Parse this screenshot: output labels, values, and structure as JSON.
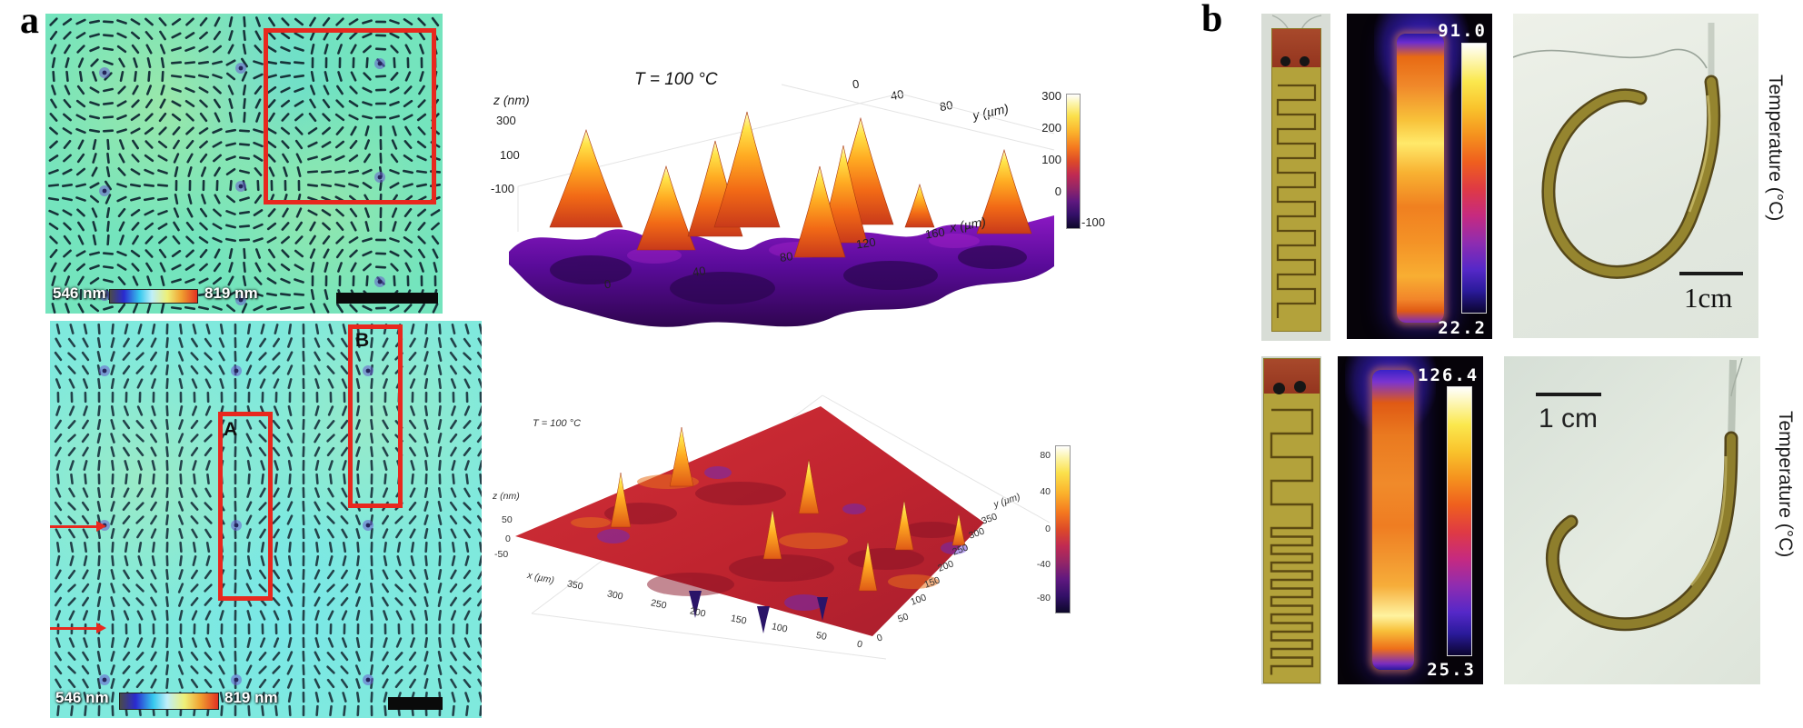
{
  "labels": {
    "panel_a": "a",
    "panel_b": "b"
  },
  "panel_a": {
    "top_micrograph": {
      "colorbar_min": "546 nm",
      "colorbar_max": "819 nm"
    },
    "bottom_micrograph": {
      "colorbar_min": "546 nm",
      "colorbar_max": "819 nm",
      "region_a": "A",
      "region_b": "B"
    },
    "top_surface": {
      "title": "T = 100 °C",
      "zlabel": "z (nm)",
      "xlabel": "x (µm)",
      "ylabel": "y (µm)",
      "z_ticks": [
        "300",
        "100",
        "-100"
      ],
      "x_ticks": [
        "0",
        "40",
        "80",
        "120",
        "160"
      ],
      "y_ticks": [
        "0",
        "40",
        "80"
      ],
      "cbar_ticks": [
        "300",
        "200",
        "100",
        "0",
        "-100"
      ]
    },
    "bottom_surface": {
      "title": "T = 100 °C",
      "zlabel": "z (nm)",
      "xlabel": "x (µm)",
      "ylabel": "y (µm)",
      "z_ticks": [
        "50",
        "0",
        "-50"
      ],
      "x_ticks": [
        "350",
        "300",
        "250",
        "200",
        "150",
        "100",
        "50",
        "0"
      ],
      "y_ticks": [
        "350",
        "300",
        "250",
        "200",
        "150",
        "100",
        "50",
        "0"
      ],
      "cbar_ticks": [
        "80",
        "40",
        "0",
        "-40",
        "-80"
      ]
    }
  },
  "panel_b": {
    "row1": {
      "thermal_max": "91.0",
      "thermal_min": "22.2",
      "scale_bar": "1cm",
      "axis_label": "Temperature (°C)"
    },
    "row2": {
      "thermal_max": "126.4",
      "thermal_min": "25.3",
      "scale_bar": "1 cm",
      "axis_label": "Temperature (°C)"
    }
  },
  "chart_data": [
    {
      "type": "surface",
      "title": "T = 100 °C",
      "xlabel": "x (µm)",
      "ylabel": "y (µm)",
      "zlabel": "z (nm)",
      "x_range": [
        0,
        160
      ],
      "y_range": [
        0,
        80
      ],
      "z_range": [
        -100,
        300
      ],
      "x_ticks": [
        0,
        40,
        80,
        120,
        160
      ],
      "y_ticks": [
        0,
        40,
        80
      ],
      "z_ticks": [
        300,
        100,
        -100
      ],
      "colorbar_range": [
        -100,
        300
      ],
      "colormap": "magma",
      "description": "Surface topography at 100 °C: undulating purple background near -50 to 0 nm with ~8 sharp conical peaks reaching ~300 nm"
    },
    {
      "type": "surface",
      "title": "T = 100 °C",
      "xlabel": "x (µm)",
      "ylabel": "y (µm)",
      "zlabel": "z (nm)",
      "x_range": [
        0,
        350
      ],
      "y_range": [
        0,
        350
      ],
      "z_range": [
        -50,
        50
      ],
      "x_ticks": [
        350,
        300,
        250,
        200,
        150,
        100,
        50,
        0
      ],
      "y_ticks": [
        350,
        300,
        250,
        200,
        150,
        100,
        50,
        0
      ],
      "z_ticks": [
        50,
        0,
        -50
      ],
      "colorbar_range": [
        -80,
        80
      ],
      "colormap": "magma",
      "description": "Nearly flat red surface (~0 nm) at 100 °C with narrow upward spikes (~80 nm) and a few downward spikes"
    },
    {
      "type": "heatmap",
      "title": "IR thermal image of heater strip (row 1)",
      "colorbar_range": [
        22.2,
        91.0
      ],
      "units": "°C",
      "colormap": "iron"
    },
    {
      "type": "heatmap",
      "title": "IR thermal image of heater strip (row 2)",
      "colorbar_range": [
        25.3,
        126.4
      ],
      "units": "°C",
      "colormap": "iron"
    }
  ]
}
